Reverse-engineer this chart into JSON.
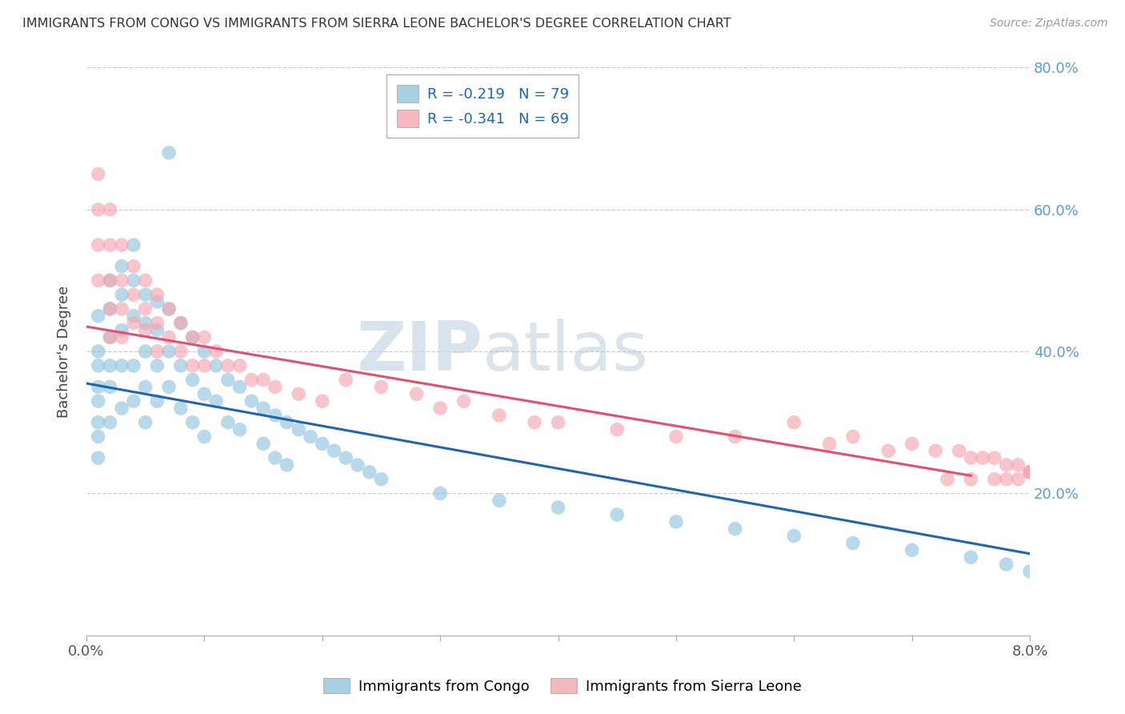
{
  "title": "IMMIGRANTS FROM CONGO VS IMMIGRANTS FROM SIERRA LEONE BACHELOR'S DEGREE CORRELATION CHART",
  "source_text": "Source: ZipAtlas.com",
  "ylabel": "Bachelor's Degree",
  "xlim": [
    0.0,
    0.08
  ],
  "ylim": [
    0.0,
    0.8
  ],
  "x_ticks": [
    0.0,
    0.01,
    0.02,
    0.03,
    0.04,
    0.05,
    0.06,
    0.07,
    0.08
  ],
  "y_ticks": [
    0.0,
    0.1,
    0.2,
    0.3,
    0.4,
    0.5,
    0.6,
    0.7,
    0.8
  ],
  "congo_color": "#92c5de",
  "sierra_leone_color": "#f4a6b0",
  "congo_line_color": "#2166ac",
  "sierra_line_color": "#e05070",
  "legend_R_congo": "-0.219",
  "legend_N_congo": "79",
  "legend_R_sierra": "-0.341",
  "legend_N_sierra": "69",
  "watermark": "ZIPatlas",
  "congo_x": [
    0.001,
    0.001,
    0.001,
    0.001,
    0.001,
    0.001,
    0.001,
    0.001,
    0.002,
    0.002,
    0.002,
    0.002,
    0.002,
    0.002,
    0.003,
    0.003,
    0.003,
    0.003,
    0.003,
    0.004,
    0.004,
    0.004,
    0.004,
    0.004,
    0.005,
    0.005,
    0.005,
    0.005,
    0.005,
    0.006,
    0.006,
    0.006,
    0.006,
    0.007,
    0.007,
    0.007,
    0.007,
    0.008,
    0.008,
    0.008,
    0.009,
    0.009,
    0.009,
    0.01,
    0.01,
    0.01,
    0.011,
    0.011,
    0.012,
    0.012,
    0.013,
    0.013,
    0.014,
    0.015,
    0.015,
    0.016,
    0.016,
    0.017,
    0.017,
    0.018,
    0.019,
    0.02,
    0.021,
    0.022,
    0.023,
    0.024,
    0.025,
    0.03,
    0.035,
    0.04,
    0.045,
    0.05,
    0.055,
    0.06,
    0.065,
    0.07,
    0.075,
    0.078,
    0.08
  ],
  "congo_y": [
    0.45,
    0.4,
    0.38,
    0.35,
    0.33,
    0.3,
    0.28,
    0.25,
    0.5,
    0.46,
    0.42,
    0.38,
    0.35,
    0.3,
    0.52,
    0.48,
    0.43,
    0.38,
    0.32,
    0.55,
    0.5,
    0.45,
    0.38,
    0.33,
    0.48,
    0.44,
    0.4,
    0.35,
    0.3,
    0.47,
    0.43,
    0.38,
    0.33,
    0.68,
    0.46,
    0.4,
    0.35,
    0.44,
    0.38,
    0.32,
    0.42,
    0.36,
    0.3,
    0.4,
    0.34,
    0.28,
    0.38,
    0.33,
    0.36,
    0.3,
    0.35,
    0.29,
    0.33,
    0.32,
    0.27,
    0.31,
    0.25,
    0.3,
    0.24,
    0.29,
    0.28,
    0.27,
    0.26,
    0.25,
    0.24,
    0.23,
    0.22,
    0.2,
    0.19,
    0.18,
    0.17,
    0.16,
    0.15,
    0.14,
    0.13,
    0.12,
    0.11,
    0.1,
    0.09
  ],
  "sierra_x": [
    0.001,
    0.001,
    0.001,
    0.001,
    0.002,
    0.002,
    0.002,
    0.002,
    0.002,
    0.003,
    0.003,
    0.003,
    0.003,
    0.004,
    0.004,
    0.004,
    0.005,
    0.005,
    0.005,
    0.006,
    0.006,
    0.006,
    0.007,
    0.007,
    0.008,
    0.008,
    0.009,
    0.009,
    0.01,
    0.01,
    0.011,
    0.012,
    0.013,
    0.014,
    0.015,
    0.016,
    0.018,
    0.02,
    0.022,
    0.025,
    0.028,
    0.03,
    0.032,
    0.035,
    0.038,
    0.04,
    0.045,
    0.05,
    0.055,
    0.06,
    0.063,
    0.065,
    0.068,
    0.07,
    0.072,
    0.074,
    0.075,
    0.076,
    0.077,
    0.078,
    0.079,
    0.08,
    0.08,
    0.08,
    0.079,
    0.078,
    0.077,
    0.075,
    0.073
  ],
  "sierra_y": [
    0.65,
    0.6,
    0.55,
    0.5,
    0.6,
    0.55,
    0.5,
    0.46,
    0.42,
    0.55,
    0.5,
    0.46,
    0.42,
    0.52,
    0.48,
    0.44,
    0.5,
    0.46,
    0.43,
    0.48,
    0.44,
    0.4,
    0.46,
    0.42,
    0.44,
    0.4,
    0.42,
    0.38,
    0.42,
    0.38,
    0.4,
    0.38,
    0.38,
    0.36,
    0.36,
    0.35,
    0.34,
    0.33,
    0.36,
    0.35,
    0.34,
    0.32,
    0.33,
    0.31,
    0.3,
    0.3,
    0.29,
    0.28,
    0.28,
    0.3,
    0.27,
    0.28,
    0.26,
    0.27,
    0.26,
    0.26,
    0.25,
    0.25,
    0.25,
    0.24,
    0.24,
    0.23,
    0.23,
    0.23,
    0.22,
    0.22,
    0.22,
    0.22,
    0.22
  ]
}
